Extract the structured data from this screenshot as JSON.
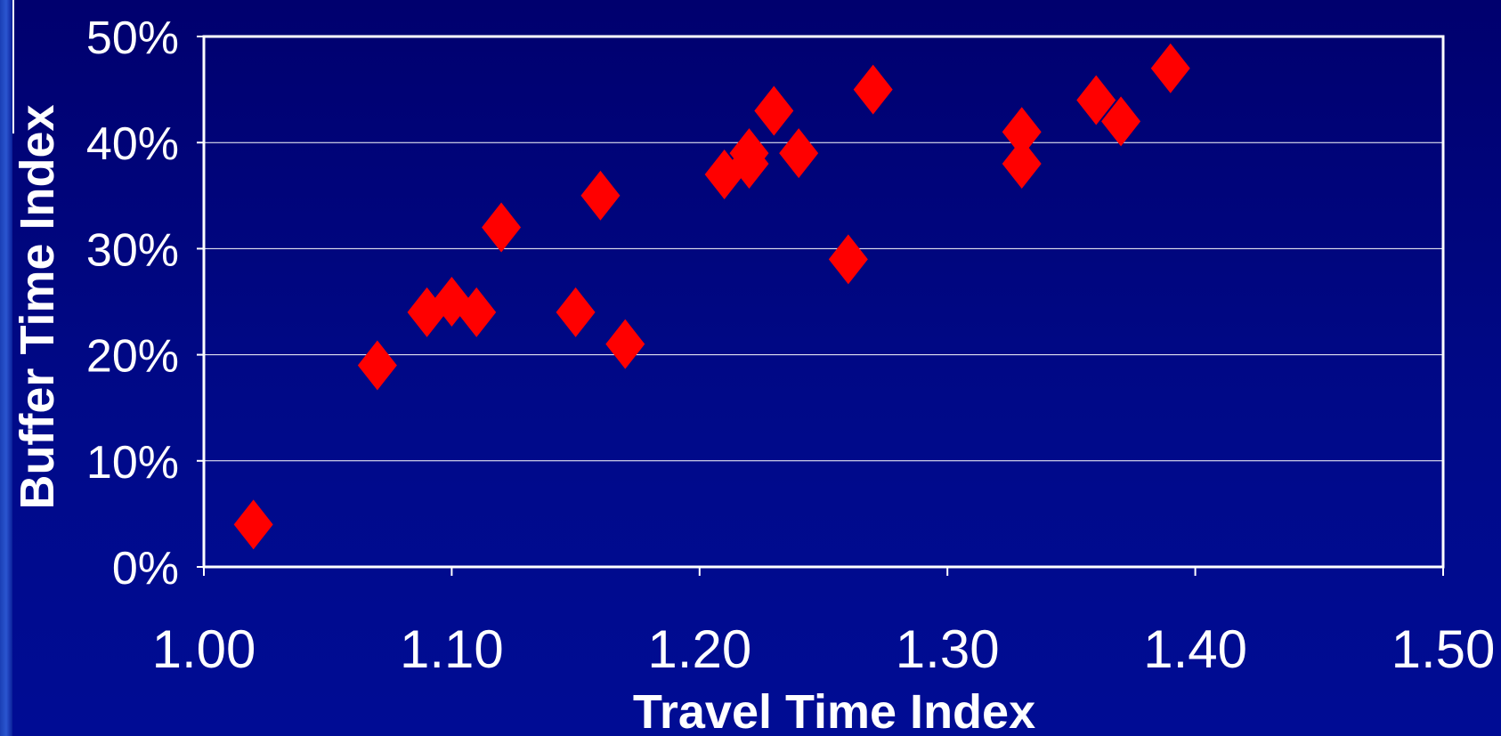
{
  "chart_data": {
    "type": "scatter",
    "title": "",
    "xlabel": "Travel Time Index",
    "ylabel": "Buffer Time Index",
    "xlim": [
      1.0,
      1.5
    ],
    "ylim": [
      0,
      0.5
    ],
    "x_ticks": [
      "1.00",
      "1.10",
      "1.20",
      "1.30",
      "1.40",
      "1.50"
    ],
    "x_tick_values": [
      1.0,
      1.1,
      1.2,
      1.3,
      1.4,
      1.5
    ],
    "y_ticks": [
      "0%",
      "10%",
      "20%",
      "30%",
      "40%",
      "50%"
    ],
    "y_tick_values": [
      0,
      0.1,
      0.2,
      0.3,
      0.4,
      0.5
    ],
    "grid": "horizontal",
    "legend": "none",
    "marker": "diamond",
    "marker_color": "#ff0000",
    "series": [
      {
        "points": [
          {
            "x": 1.02,
            "y": 0.04
          },
          {
            "x": 1.07,
            "y": 0.19
          },
          {
            "x": 1.09,
            "y": 0.24
          },
          {
            "x": 1.1,
            "y": 0.25
          },
          {
            "x": 1.11,
            "y": 0.24
          },
          {
            "x": 1.12,
            "y": 0.32
          },
          {
            "x": 1.15,
            "y": 0.24
          },
          {
            "x": 1.16,
            "y": 0.35
          },
          {
            "x": 1.17,
            "y": 0.21
          },
          {
            "x": 1.21,
            "y": 0.37
          },
          {
            "x": 1.22,
            "y": 0.38
          },
          {
            "x": 1.22,
            "y": 0.39
          },
          {
            "x": 1.23,
            "y": 0.43
          },
          {
            "x": 1.24,
            "y": 0.39
          },
          {
            "x": 1.26,
            "y": 0.29
          },
          {
            "x": 1.27,
            "y": 0.45
          },
          {
            "x": 1.33,
            "y": 0.41
          },
          {
            "x": 1.33,
            "y": 0.38
          },
          {
            "x": 1.36,
            "y": 0.44
          },
          {
            "x": 1.37,
            "y": 0.42
          },
          {
            "x": 1.39,
            "y": 0.47
          }
        ]
      }
    ]
  },
  "colors": {
    "background": "#00007f",
    "plot_border": "#ffffff",
    "gridline": "#ffffff",
    "marker": "#ff0000",
    "text": "#ffffff"
  }
}
